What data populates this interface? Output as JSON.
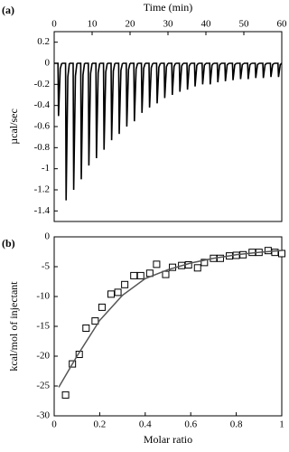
{
  "chart_data": [
    {
      "type": "spike",
      "panel_label": "(a)",
      "x_label": "Time (min)",
      "y_label": "µcal/sec",
      "xlim": [
        0,
        60
      ],
      "xticks": [
        0,
        10,
        20,
        30,
        40,
        50,
        60
      ],
      "ylim": [
        -1.5,
        0.3
      ],
      "yticks": [
        0.2,
        0,
        -0.2,
        -0.4,
        -0.6,
        -0.8,
        -1,
        -1.2,
        -1.4
      ],
      "color": "#000000",
      "x": [
        1,
        3,
        5,
        7,
        9,
        11,
        13,
        15,
        17,
        19,
        21,
        23,
        25,
        27,
        29,
        31,
        33,
        35,
        37,
        39,
        41,
        43,
        45,
        47,
        49,
        51,
        53,
        55,
        57,
        59
      ],
      "values": [
        -0.5,
        -1.3,
        -1.2,
        -1.1,
        -0.97,
        -0.9,
        -0.82,
        -0.73,
        -0.67,
        -0.6,
        -0.55,
        -0.47,
        -0.42,
        -0.38,
        -0.33,
        -0.3,
        -0.27,
        -0.25,
        -0.22,
        -0.2,
        -0.2,
        -0.18,
        -0.17,
        -0.16,
        -0.15,
        -0.15,
        -0.14,
        -0.14,
        -0.13,
        -0.13
      ]
    },
    {
      "type": "scatter",
      "panel_label": "(b)",
      "x_label": "Molar ratio",
      "y_label": "kcal/mol of injectant",
      "xlim": [
        0,
        1
      ],
      "xticks": [
        0,
        0.2,
        0.4,
        0.6,
        0.8,
        1
      ],
      "ylim": [
        -30,
        0
      ],
      "yticks": [
        0,
        -5,
        -10,
        -15,
        -20,
        -25,
        -30
      ],
      "series": [
        {
          "marker": "square",
          "color": "#000000",
          "x": [
            0.05,
            0.08,
            0.11,
            0.14,
            0.18,
            0.21,
            0.25,
            0.28,
            0.31,
            0.35,
            0.38,
            0.42,
            0.45,
            0.49,
            0.52,
            0.56,
            0.59,
            0.63,
            0.66,
            0.7,
            0.73,
            0.77,
            0.8,
            0.83,
            0.87,
            0.9,
            0.94,
            0.97,
            1.0
          ],
          "values": [
            -26.5,
            -21.3,
            -19.7,
            -15.3,
            -14.1,
            -11.8,
            -9.6,
            -9.3,
            -8.0,
            -6.5,
            -6.5,
            -6.1,
            -4.6,
            -6.3,
            -5.1,
            -4.8,
            -4.7,
            -5.2,
            -4.3,
            -3.6,
            -3.6,
            -3.2,
            -3.1,
            -3.0,
            -2.6,
            -2.6,
            -2.3,
            -2.6,
            -2.8
          ]
        },
        {
          "marker": "line",
          "color": "#555555",
          "x": [
            0.02,
            0.1,
            0.2,
            0.3,
            0.4,
            0.5,
            0.6,
            0.7,
            0.8,
            0.9,
            1.0
          ],
          "values": [
            -25.2,
            -20,
            -14,
            -9.8,
            -7,
            -5.5,
            -4.4,
            -3.6,
            -3.0,
            -2.6,
            -2.3
          ]
        }
      ]
    }
  ]
}
